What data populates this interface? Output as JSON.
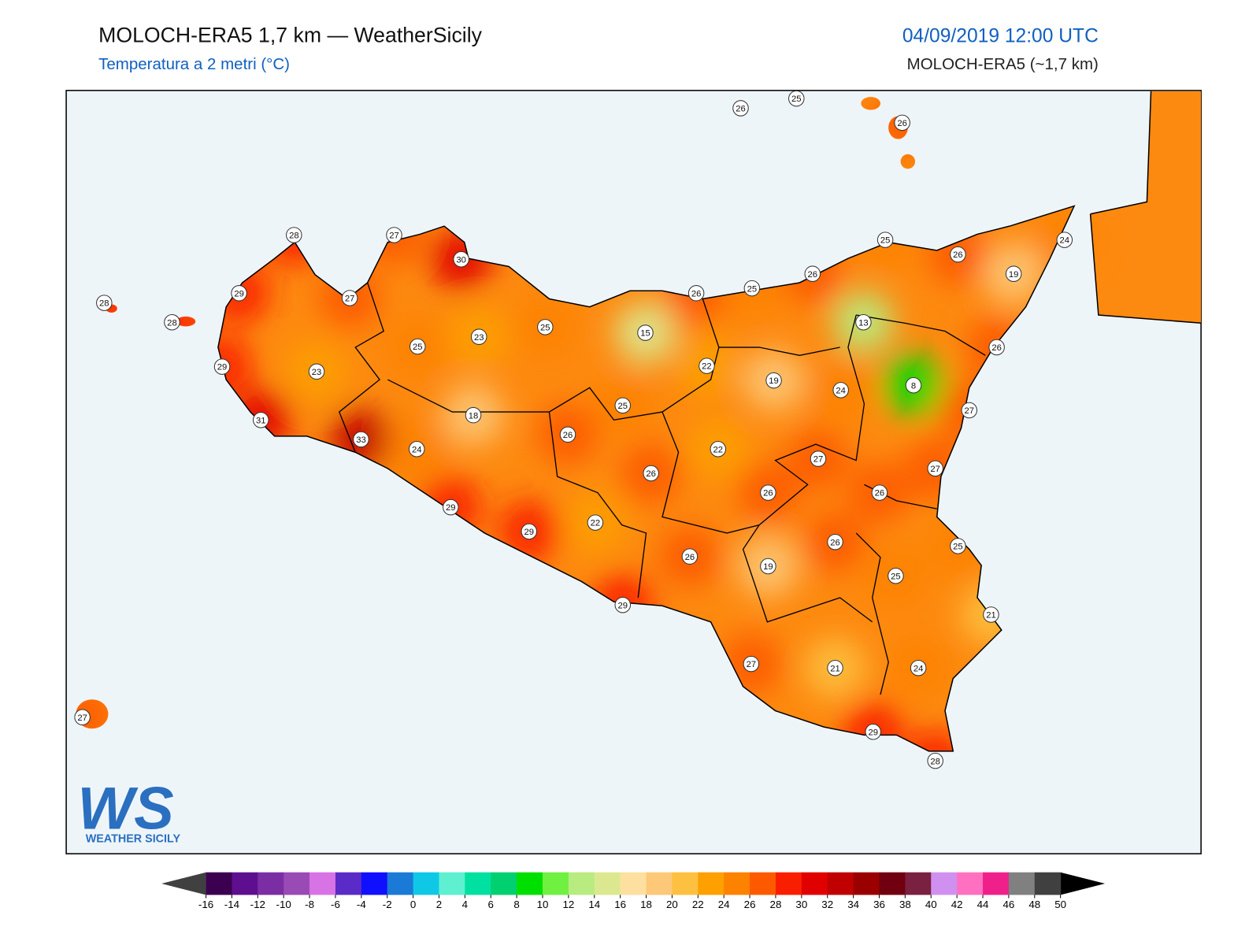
{
  "header": {
    "title": "MOLOCH-ERA5 1,7 km — WeatherSicily",
    "subtitle": "Temperatura a 2 metri (°C)",
    "datetime": "04/09/2019 12:00 UTC",
    "model": "MOLOCH-ERA5 (~1,7 km)"
  },
  "stations": {
    "values": [
      26,
      25,
      26,
      28,
      27,
      30,
      29,
      27,
      28,
      28,
      23,
      25,
      15,
      25,
      26,
      25,
      26,
      25,
      26,
      24,
      19,
      13,
      26,
      22,
      19,
      24,
      8,
      27,
      29,
      23,
      31,
      18,
      25,
      33,
      24,
      26,
      22,
      26,
      27,
      27,
      26,
      26,
      29,
      22,
      29,
      26,
      25,
      26,
      19,
      25,
      29,
      21,
      27,
      21,
      24,
      29,
      28,
      27
    ]
  },
  "logo": {
    "letters": "WS",
    "name": "WEATHER SICILY"
  },
  "colorbar": {
    "ticks": [
      -16,
      -14,
      -12,
      -10,
      -8,
      -6,
      -4,
      -2,
      0,
      2,
      4,
      6,
      8,
      10,
      12,
      14,
      16,
      18,
      20,
      22,
      24,
      26,
      28,
      30,
      32,
      34,
      36,
      38,
      40,
      42,
      44,
      46,
      48,
      50
    ],
    "colors": [
      "#3b0050",
      "#5e0f8f",
      "#7b2ea3",
      "#9a4ab5",
      "#d873e6",
      "#5a2bc6",
      "#1010ff",
      "#1a7ad6",
      "#0fc8e6",
      "#5ef0d0",
      "#00e0a0",
      "#00d070",
      "#00e000",
      "#70f040",
      "#b8ec80",
      "#dce890",
      "#fde0a0",
      "#fdc878",
      "#fdc040",
      "#fda000",
      "#fd8200",
      "#fd5a00",
      "#fa1e00",
      "#e00000",
      "#c00000",
      "#9a0000",
      "#700010",
      "#7a2040",
      "#d090f0",
      "#ff70c0",
      "#f0208a",
      "#808080",
      "#404040"
    ],
    "under_color": "#404040",
    "over_color": "#000000"
  }
}
